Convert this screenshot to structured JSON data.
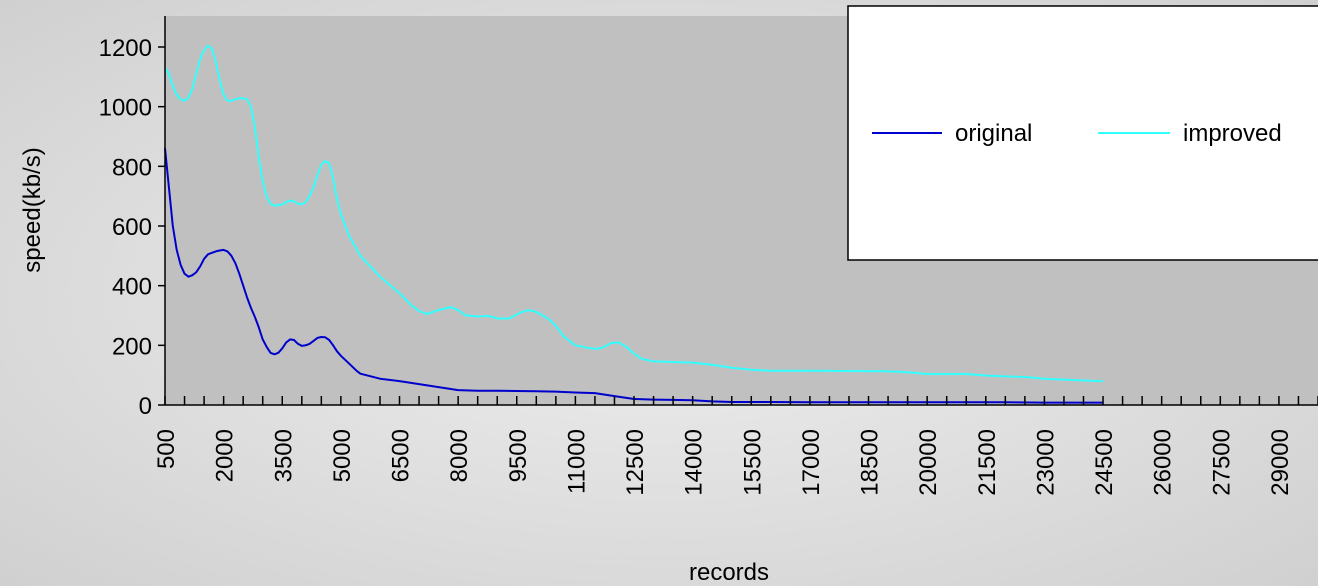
{
  "chart_data": {
    "type": "line",
    "title": "",
    "xlabel": "records",
    "ylabel": "speed(kb/s)",
    "ylim": [
      0,
      1300
    ],
    "yticks": [
      0,
      200,
      400,
      600,
      800,
      1000,
      1200
    ],
    "xlim": [
      500,
      30000
    ],
    "x_tick_labels": [
      "500",
      "2000",
      "3500",
      "5000",
      "6500",
      "8000",
      "9500",
      "11000",
      "12500",
      "14000",
      "15500",
      "17000",
      "18500",
      "20000",
      "21500",
      "23000",
      "24500",
      "26000",
      "27500",
      "29000"
    ],
    "plot_background": "#c0c0c0",
    "grid": false,
    "legend_position": "upper-right",
    "series": [
      {
        "name": "original",
        "color": "#0000cc",
        "points": [
          [
            500,
            860
          ],
          [
            600,
            730
          ],
          [
            700,
            600
          ],
          [
            800,
            520
          ],
          [
            900,
            470
          ],
          [
            1000,
            440
          ],
          [
            1100,
            430
          ],
          [
            1200,
            435
          ],
          [
            1300,
            445
          ],
          [
            1400,
            465
          ],
          [
            1500,
            490
          ],
          [
            1600,
            505
          ],
          [
            1700,
            510
          ],
          [
            1800,
            515
          ],
          [
            1900,
            518
          ],
          [
            2000,
            520
          ],
          [
            2100,
            515
          ],
          [
            2200,
            500
          ],
          [
            2300,
            475
          ],
          [
            2400,
            440
          ],
          [
            2500,
            400
          ],
          [
            2600,
            360
          ],
          [
            2700,
            325
          ],
          [
            2800,
            295
          ],
          [
            2900,
            260
          ],
          [
            3000,
            220
          ],
          [
            3100,
            195
          ],
          [
            3200,
            175
          ],
          [
            3300,
            170
          ],
          [
            3400,
            175
          ],
          [
            3500,
            190
          ],
          [
            3600,
            210
          ],
          [
            3700,
            220
          ],
          [
            3800,
            218
          ],
          [
            3900,
            205
          ],
          [
            4000,
            198
          ],
          [
            4100,
            200
          ],
          [
            4200,
            205
          ],
          [
            4300,
            215
          ],
          [
            4400,
            225
          ],
          [
            4500,
            228
          ],
          [
            4600,
            227
          ],
          [
            4700,
            218
          ],
          [
            4800,
            200
          ],
          [
            4900,
            180
          ],
          [
            5000,
            165
          ],
          [
            5200,
            140
          ],
          [
            5400,
            115
          ],
          [
            5500,
            105
          ],
          [
            6000,
            88
          ],
          [
            6500,
            80
          ],
          [
            7000,
            70
          ],
          [
            7500,
            60
          ],
          [
            8000,
            50
          ],
          [
            8500,
            48
          ],
          [
            9000,
            48
          ],
          [
            9500,
            47
          ],
          [
            10000,
            46
          ],
          [
            10500,
            45
          ],
          [
            11000,
            42
          ],
          [
            11500,
            40
          ],
          [
            12000,
            30
          ],
          [
            12500,
            20
          ],
          [
            13000,
            18
          ],
          [
            13500,
            17
          ],
          [
            14000,
            16
          ],
          [
            14500,
            12
          ],
          [
            15000,
            10
          ],
          [
            16000,
            10
          ],
          [
            17000,
            9
          ],
          [
            18000,
            9
          ],
          [
            19000,
            9
          ],
          [
            20000,
            9
          ],
          [
            21000,
            9
          ],
          [
            22000,
            9
          ],
          [
            23000,
            8
          ],
          [
            24000,
            8
          ],
          [
            24500,
            8
          ]
        ]
      },
      {
        "name": "improved",
        "color": "#33ffff",
        "points": [
          [
            500,
            1130
          ],
          [
            600,
            1110
          ],
          [
            700,
            1070
          ],
          [
            800,
            1040
          ],
          [
            900,
            1025
          ],
          [
            1000,
            1020
          ],
          [
            1100,
            1030
          ],
          [
            1200,
            1060
          ],
          [
            1300,
            1110
          ],
          [
            1400,
            1160
          ],
          [
            1500,
            1190
          ],
          [
            1600,
            1205
          ],
          [
            1700,
            1195
          ],
          [
            1800,
            1150
          ],
          [
            1900,
            1090
          ],
          [
            2000,
            1040
          ],
          [
            2100,
            1020
          ],
          [
            2200,
            1020
          ],
          [
            2300,
            1025
          ],
          [
            2400,
            1028
          ],
          [
            2500,
            1028
          ],
          [
            2600,
            1025
          ],
          [
            2700,
            1000
          ],
          [
            2800,
            930
          ],
          [
            2900,
            830
          ],
          [
            3000,
            750
          ],
          [
            3100,
            700
          ],
          [
            3200,
            675
          ],
          [
            3300,
            668
          ],
          [
            3400,
            670
          ],
          [
            3500,
            672
          ],
          [
            3600,
            680
          ],
          [
            3700,
            685
          ],
          [
            3800,
            682
          ],
          [
            3900,
            675
          ],
          [
            4000,
            672
          ],
          [
            4100,
            680
          ],
          [
            4200,
            700
          ],
          [
            4300,
            730
          ],
          [
            4400,
            770
          ],
          [
            4500,
            805
          ],
          [
            4600,
            818
          ],
          [
            4700,
            810
          ],
          [
            4800,
            760
          ],
          [
            4900,
            690
          ],
          [
            5000,
            640
          ],
          [
            5200,
            570
          ],
          [
            5500,
            500
          ],
          [
            6000,
            430
          ],
          [
            6500,
            375
          ],
          [
            6800,
            335
          ],
          [
            7000,
            315
          ],
          [
            7200,
            305
          ],
          [
            7500,
            318
          ],
          [
            7800,
            328
          ],
          [
            8000,
            318
          ],
          [
            8200,
            300
          ],
          [
            8500,
            297
          ],
          [
            8800,
            298
          ],
          [
            9000,
            290
          ],
          [
            9300,
            290
          ],
          [
            9600,
            310
          ],
          [
            9800,
            318
          ],
          [
            10000,
            312
          ],
          [
            10300,
            290
          ],
          [
            10500,
            265
          ],
          [
            10700,
            230
          ],
          [
            11000,
            200
          ],
          [
            11300,
            192
          ],
          [
            11500,
            188
          ],
          [
            11700,
            192
          ],
          [
            11900,
            207
          ],
          [
            12100,
            210
          ],
          [
            12300,
            195
          ],
          [
            12500,
            172
          ],
          [
            12700,
            155
          ],
          [
            13000,
            146
          ],
          [
            13500,
            144
          ],
          [
            14000,
            142
          ],
          [
            14500,
            135
          ],
          [
            15000,
            125
          ],
          [
            15500,
            118
          ],
          [
            16000,
            115
          ],
          [
            17000,
            115
          ],
          [
            18000,
            114
          ],
          [
            19000,
            113
          ],
          [
            19500,
            110
          ],
          [
            20000,
            104
          ],
          [
            21000,
            104
          ],
          [
            21500,
            99
          ],
          [
            22000,
            96
          ],
          [
            22500,
            94
          ],
          [
            23000,
            88
          ],
          [
            23500,
            85
          ],
          [
            24000,
            82
          ],
          [
            24500,
            80
          ]
        ]
      }
    ]
  }
}
